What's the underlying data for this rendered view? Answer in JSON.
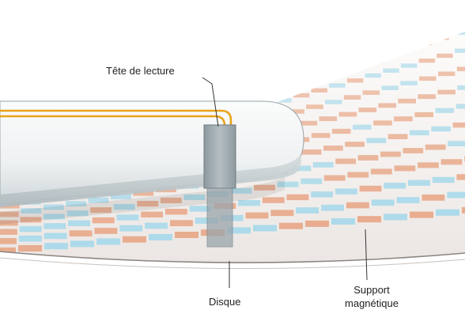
{
  "labels": {
    "head": "Tête de lecture",
    "disk": "Disque",
    "medium_line1": "Support",
    "medium_line2": "magnétique"
  },
  "colors": {
    "background": "#ffffff",
    "platter_light": "#f4f1ef",
    "platter_edge": "#8a8580",
    "stripe_grid": "#d7cfcb",
    "domain_orange": "#e8a98a",
    "domain_blue": "#a9d9ea",
    "arm_light": "#f6f8f8",
    "arm_dark": "#cfd6d8",
    "wire": "#e8a21a",
    "head_block": "#9aa5ab",
    "leader_line": "#333333"
  }
}
